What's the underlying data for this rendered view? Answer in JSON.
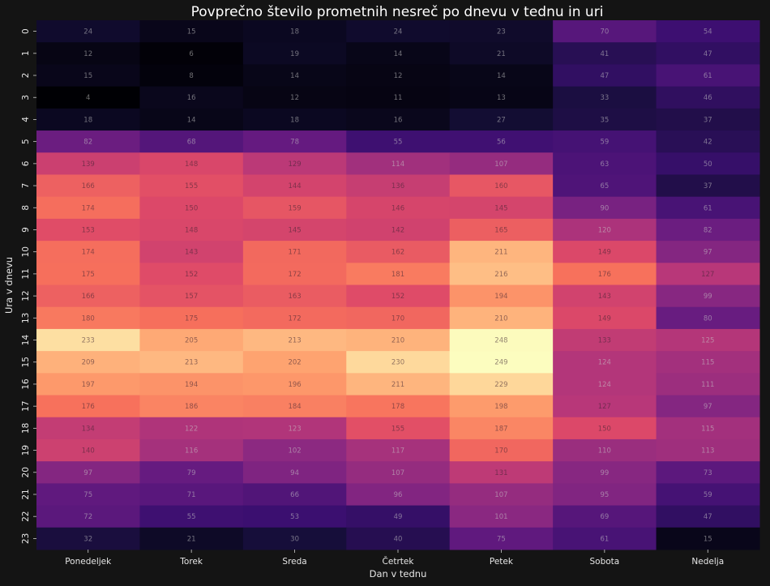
{
  "chart_data": {
    "type": "heatmap",
    "title": "Povprečno število prometnih nesreč po dnevu v tednu in uri",
    "xlabel": "Dan v tednu",
    "ylabel": "Ura v dnevu",
    "colormap": "magma",
    "vmin": 4,
    "vmax": 249,
    "x_categories": [
      "Ponedeljek",
      "Torek",
      "Sreda",
      "Četrtek",
      "Petek",
      "Sobota",
      "Nedelja"
    ],
    "y_categories": [
      "0",
      "1",
      "2",
      "3",
      "4",
      "5",
      "6",
      "7",
      "8",
      "9",
      "10",
      "11",
      "12",
      "13",
      "14",
      "15",
      "16",
      "17",
      "18",
      "19",
      "20",
      "21",
      "22",
      "23"
    ],
    "values": [
      [
        24,
        15,
        18,
        24,
        23,
        70,
        54
      ],
      [
        12,
        6,
        19,
        14,
        21,
        41,
        47
      ],
      [
        15,
        8,
        14,
        12,
        14,
        47,
        61
      ],
      [
        4,
        16,
        12,
        11,
        13,
        33,
        46
      ],
      [
        18,
        14,
        18,
        16,
        27,
        35,
        37
      ],
      [
        82,
        68,
        78,
        55,
        56,
        59,
        42
      ],
      [
        139,
        148,
        129,
        114,
        107,
        63,
        50
      ],
      [
        166,
        155,
        144,
        136,
        160,
        65,
        37
      ],
      [
        174,
        150,
        159,
        146,
        145,
        90,
        61
      ],
      [
        153,
        148,
        145,
        142,
        165,
        120,
        82
      ],
      [
        174,
        143,
        171,
        162,
        211,
        149,
        97
      ],
      [
        175,
        152,
        172,
        181,
        216,
        176,
        127
      ],
      [
        166,
        157,
        163,
        152,
        194,
        143,
        99
      ],
      [
        180,
        175,
        172,
        170,
        210,
        149,
        80
      ],
      [
        233,
        205,
        213,
        210,
        248,
        133,
        125
      ],
      [
        209,
        213,
        202,
        230,
        249,
        124,
        115
      ],
      [
        197,
        194,
        196,
        211,
        229,
        124,
        111
      ],
      [
        176,
        186,
        184,
        178,
        198,
        127,
        97
      ],
      [
        134,
        122,
        123,
        155,
        187,
        150,
        115
      ],
      [
        140,
        116,
        102,
        117,
        170,
        110,
        113
      ],
      [
        97,
        79,
        94,
        107,
        131,
        99,
        73
      ],
      [
        75,
        71,
        66,
        96,
        107,
        95,
        59
      ],
      [
        72,
        55,
        53,
        49,
        101,
        69,
        47
      ],
      [
        32,
        21,
        30,
        40,
        75,
        61,
        15
      ]
    ]
  }
}
